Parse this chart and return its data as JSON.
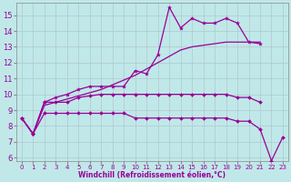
{
  "xlabel": "Windchill (Refroidissement éolien,°C)",
  "xlim": [
    -0.5,
    23.5
  ],
  "ylim": [
    5.8,
    15.8
  ],
  "xticks": [
    0,
    1,
    2,
    3,
    4,
    5,
    6,
    7,
    8,
    9,
    10,
    11,
    12,
    13,
    14,
    15,
    16,
    17,
    18,
    19,
    20,
    21,
    22,
    23
  ],
  "yticks": [
    6,
    7,
    8,
    9,
    10,
    11,
    12,
    13,
    14,
    15
  ],
  "bg_color": "#c0e8e8",
  "line_color": "#990099",
  "grid_color": "#b0c8d0",
  "line1": {
    "x": [
      0,
      1,
      2,
      3,
      4,
      5,
      6,
      7,
      8,
      9,
      10,
      11,
      12,
      13,
      14,
      15,
      16,
      17,
      18,
      19,
      20,
      21
    ],
    "y": [
      8.5,
      7.5,
      9.5,
      9.8,
      10.0,
      10.3,
      10.5,
      10.5,
      10.5,
      10.5,
      11.5,
      11.3,
      12.5,
      15.5,
      14.2,
      14.8,
      14.5,
      14.5,
      14.8,
      14.5,
      13.3,
      13.2
    ]
  },
  "line2": {
    "x": [
      0,
      1,
      2,
      3,
      4,
      5,
      6,
      7,
      8,
      9,
      10,
      11,
      12,
      13,
      14,
      15,
      16,
      17,
      18,
      19,
      20,
      21
    ],
    "y": [
      8.5,
      7.5,
      9.3,
      9.5,
      9.7,
      9.9,
      10.1,
      10.3,
      10.6,
      10.9,
      11.2,
      11.6,
      12.0,
      12.4,
      12.8,
      13.0,
      13.1,
      13.2,
      13.3,
      13.3,
      13.3,
      13.3
    ]
  },
  "line3": {
    "x": [
      0,
      1,
      2,
      3,
      4,
      5,
      6,
      7,
      8,
      9,
      10,
      11,
      12,
      13,
      14,
      15,
      16,
      17,
      18,
      19,
      20,
      21
    ],
    "y": [
      8.5,
      7.5,
      9.5,
      9.5,
      9.5,
      9.8,
      9.9,
      10.0,
      10.0,
      10.0,
      10.0,
      10.0,
      10.0,
      10.0,
      10.0,
      10.0,
      10.0,
      10.0,
      10.0,
      9.8,
      9.8,
      9.5
    ]
  },
  "line4": {
    "x": [
      0,
      1,
      2,
      3,
      4,
      5,
      6,
      7,
      8,
      9,
      10,
      11,
      12,
      13,
      14,
      15,
      16,
      17,
      18,
      19,
      20,
      21,
      22,
      23
    ],
    "y": [
      8.5,
      7.5,
      8.8,
      8.8,
      8.8,
      8.8,
      8.8,
      8.8,
      8.8,
      8.8,
      8.5,
      8.5,
      8.5,
      8.5,
      8.5,
      8.5,
      8.5,
      8.5,
      8.5,
      8.3,
      8.3,
      7.8,
      5.8,
      7.3
    ]
  }
}
